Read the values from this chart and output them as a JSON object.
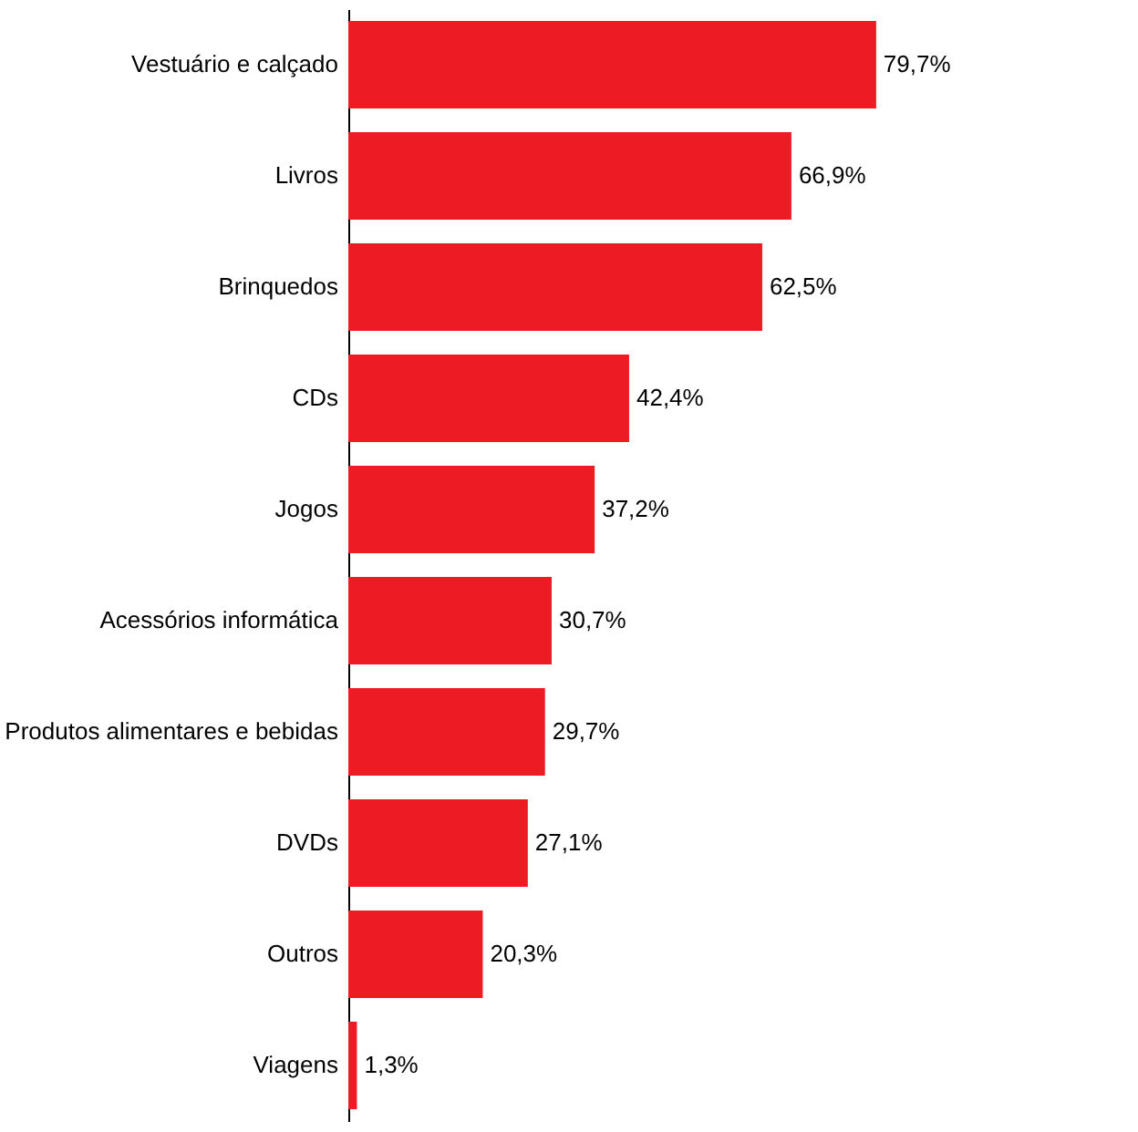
{
  "chart_data": {
    "type": "bar",
    "orientation": "horizontal",
    "categories": [
      "Vestuário e calçado",
      "Livros",
      "Brinquedos",
      "CDs",
      "Jogos",
      "Acessórios informática",
      "Produtos alimentares e bebidas",
      "DVDs",
      "Outros",
      "Viagens"
    ],
    "values": [
      79.7,
      66.9,
      62.5,
      42.4,
      37.2,
      30.7,
      29.7,
      27.1,
      20.3,
      1.3
    ],
    "value_labels": [
      "79,7%",
      "66,9%",
      "62,5%",
      "42,4%",
      "37,2%",
      "30,7%",
      "29,7%",
      "27,1%",
      "20,3%",
      "1,3%"
    ],
    "color": "#ed1c24",
    "xlim": [
      0,
      95
    ],
    "tick_labels": "y"
  }
}
